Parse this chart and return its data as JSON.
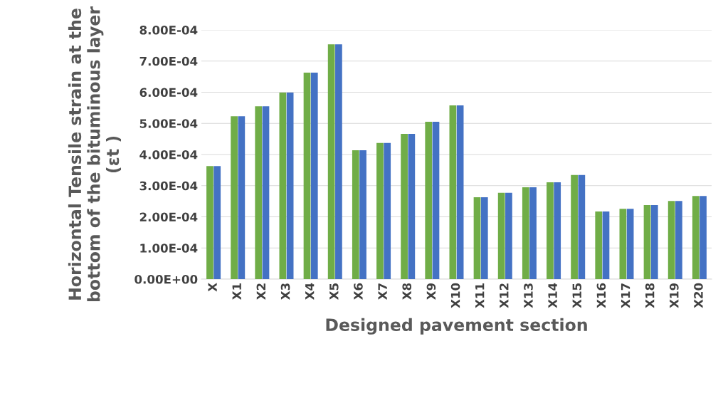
{
  "chart_data": {
    "type": "bar",
    "xlabel": "Designed pavement section",
    "ylabel": "Horizontal Tensile strain at the\nbottom of the bituminous layer\n(εt )",
    "categories": [
      "X",
      "X1",
      "X2",
      "X3",
      "X4",
      "X5",
      "X6",
      "X7",
      "X8",
      "X9",
      "X10",
      "X11",
      "X12",
      "X13",
      "X14",
      "X15",
      "X16",
      "X17",
      "X18",
      "X19",
      "X20"
    ],
    "series": [
      {
        "color": "#70ad47",
        "values": [
          0.000363,
          0.000523,
          0.000555,
          0.000599,
          0.000663,
          0.000754,
          0.000414,
          0.000437,
          0.000466,
          0.000505,
          0.000558,
          0.000263,
          0.000277,
          0.000295,
          0.000311,
          0.000334,
          0.000217,
          0.000226,
          0.000238,
          0.000251,
          0.000267
        ]
      },
      {
        "color": "#4472c4",
        "values": [
          0.000363,
          0.000523,
          0.000555,
          0.000599,
          0.000663,
          0.000754,
          0.000414,
          0.000437,
          0.000466,
          0.000505,
          0.000558,
          0.000263,
          0.000277,
          0.000295,
          0.000311,
          0.000334,
          0.000217,
          0.000226,
          0.000238,
          0.000251,
          0.000267
        ]
      }
    ],
    "ylim": [
      0,
      0.0008
    ],
    "yticks": [
      {
        "value": 0,
        "label": "0.00E+00"
      },
      {
        "value": 0.0001,
        "label": "1.00E-04"
      },
      {
        "value": 0.0002,
        "label": "2.00E-04"
      },
      {
        "value": 0.0003,
        "label": "3.00E-04"
      },
      {
        "value": 0.0004,
        "label": "4.00E-04"
      },
      {
        "value": 0.0005,
        "label": "5.00E-04"
      },
      {
        "value": 0.0006,
        "label": "6.00E-04"
      },
      {
        "value": 0.0007,
        "label": "7.00E-04"
      },
      {
        "value": 0.0008,
        "label": "8.00E-04"
      }
    ],
    "grid": "y"
  }
}
